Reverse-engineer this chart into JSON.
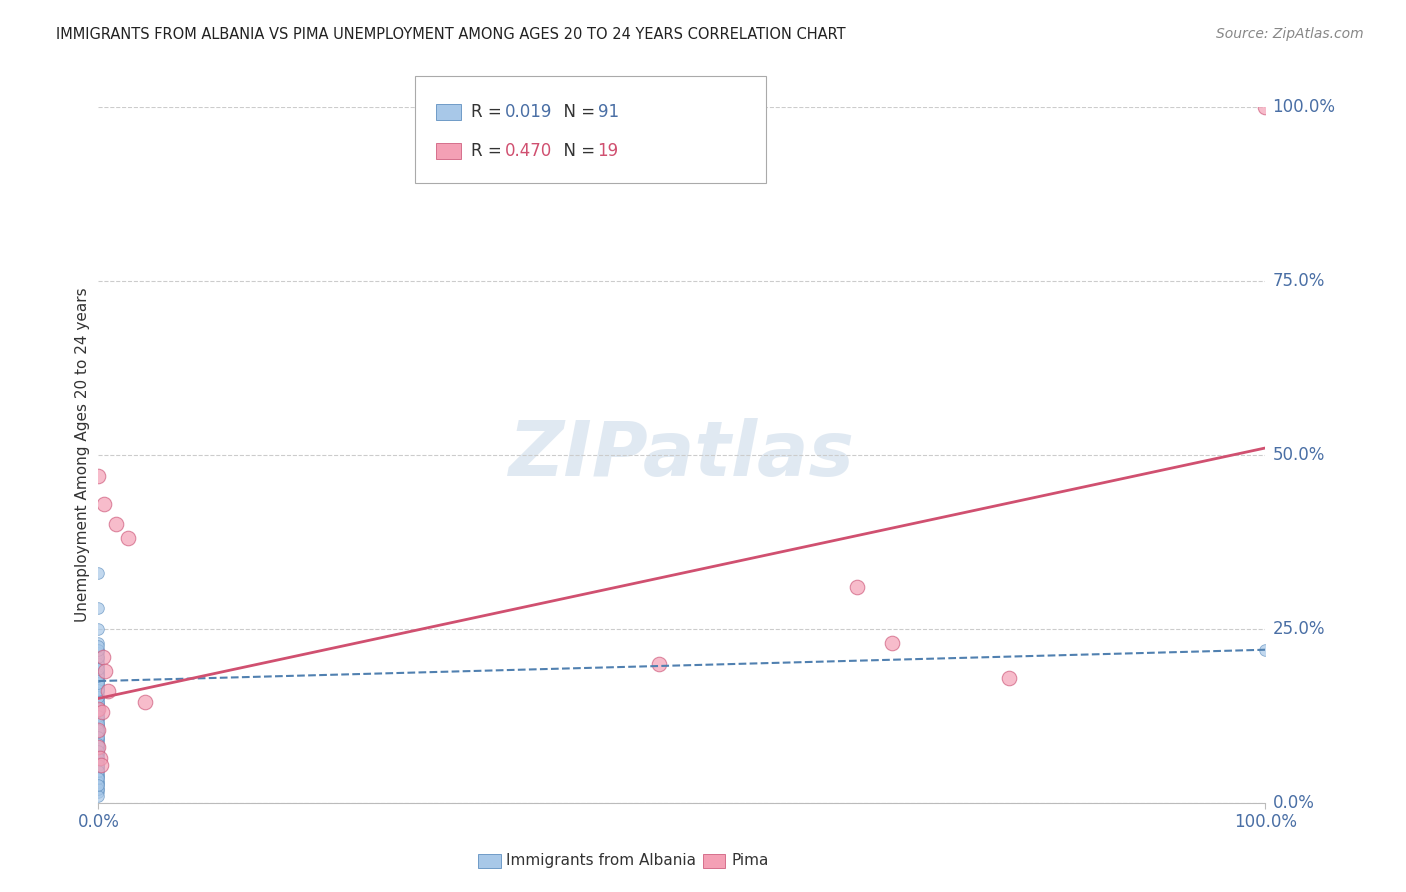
{
  "title": "IMMIGRANTS FROM ALBANIA VS PIMA UNEMPLOYMENT AMONG AGES 20 TO 24 YEARS CORRELATION CHART",
  "source": "Source: ZipAtlas.com",
  "ylabel": "Unemployment Among Ages 20 to 24 years",
  "watermark": "ZIPatlas",
  "blue_R": 0.019,
  "blue_N": 91,
  "pink_R": 0.47,
  "pink_N": 19,
  "blue_color": "#a8c8e8",
  "pink_color": "#f4a0b5",
  "blue_edge_color": "#6090c0",
  "pink_edge_color": "#d06080",
  "blue_line_color": "#5080b0",
  "pink_line_color": "#d05070",
  "legend_blue_label": "Immigrants from Albania",
  "legend_pink_label": "Pima",
  "ytick_values": [
    0,
    25,
    50,
    75,
    100
  ],
  "ytick_labels": [
    "0.0%",
    "25.0%",
    "50.0%",
    "75.0%",
    "100.0%"
  ],
  "grid_color": "#cccccc",
  "background_color": "#ffffff",
  "blue_x": [
    0.0,
    0.0,
    0.0,
    0.0,
    0.0,
    0.0,
    0.0,
    0.0,
    0.0,
    0.0,
    0.0,
    0.0,
    0.0,
    0.0,
    0.0,
    0.0,
    0.0,
    0.0,
    0.0,
    0.0,
    0.0,
    0.0,
    0.0,
    0.0,
    0.0,
    0.0,
    0.0,
    0.0,
    0.0,
    0.0,
    0.0,
    0.0,
    0.0,
    0.0,
    0.0,
    0.0,
    0.0,
    0.0,
    0.0,
    0.0,
    0.0,
    0.0,
    0.0,
    0.0,
    0.0,
    0.0,
    0.0,
    0.0,
    0.0,
    0.0,
    0.0,
    0.0,
    0.0,
    0.0,
    0.0,
    0.0,
    0.0,
    0.0,
    0.0,
    0.0,
    0.0,
    0.0,
    0.0,
    0.0,
    0.0,
    0.0,
    0.0,
    0.0,
    0.0,
    0.0,
    0.0,
    0.0,
    0.0,
    0.0,
    0.0,
    0.0,
    0.0,
    0.0,
    0.0,
    0.0,
    0.0,
    0.0,
    0.0,
    0.0,
    0.0,
    0.0,
    0.0,
    0.0,
    0.0,
    0.0,
    100.0
  ],
  "blue_y": [
    20.0,
    23.0,
    18.0,
    16.0,
    22.0,
    19.0,
    17.0,
    21.0,
    15.0,
    14.0,
    13.0,
    12.0,
    11.0,
    10.0,
    9.0,
    8.0,
    7.0,
    6.0,
    5.0,
    4.0,
    3.0,
    2.0,
    1.5,
    16.5,
    17.5,
    18.5,
    19.5,
    20.5,
    21.5,
    14.5,
    13.5,
    12.5,
    11.5,
    10.5,
    9.5,
    8.5,
    7.5,
    6.5,
    5.5,
    4.5,
    3.5,
    2.5,
    15.0,
    16.0,
    17.0,
    18.0,
    19.0,
    20.0,
    21.0,
    22.0,
    14.0,
    13.0,
    12.0,
    11.0,
    10.0,
    9.0,
    8.0,
    7.0,
    6.0,
    5.0,
    4.0,
    3.0,
    2.0,
    1.0,
    15.5,
    16.5,
    17.5,
    18.5,
    28.0,
    33.0,
    22.5,
    25.0,
    14.5,
    13.5,
    12.5,
    11.5,
    10.5,
    9.5,
    8.5,
    7.5,
    6.5,
    5.5,
    4.5,
    3.5,
    2.5,
    15.2,
    16.2,
    17.2,
    18.2,
    19.2,
    22.0
  ],
  "pink_x": [
    0.0,
    0.5,
    1.5,
    2.5,
    4.0,
    0.0,
    0.0,
    0.0,
    48.0,
    0.3,
    0.8,
    65.0,
    78.0,
    68.0,
    0.1,
    0.2,
    100.0,
    0.4,
    0.6
  ],
  "pink_y": [
    47.0,
    43.0,
    40.0,
    38.0,
    14.5,
    10.5,
    8.0,
    13.5,
    20.0,
    13.0,
    16.0,
    31.0,
    18.0,
    23.0,
    6.5,
    5.5,
    100.0,
    21.0,
    19.0
  ],
  "blue_trend_x": [
    0,
    100
  ],
  "blue_trend_y": [
    17.5,
    22.0
  ],
  "pink_trend_x": [
    0,
    100
  ],
  "pink_trend_y": [
    15.0,
    51.0
  ],
  "ylim": [
    0,
    100
  ],
  "xlim": [
    0,
    100
  ]
}
